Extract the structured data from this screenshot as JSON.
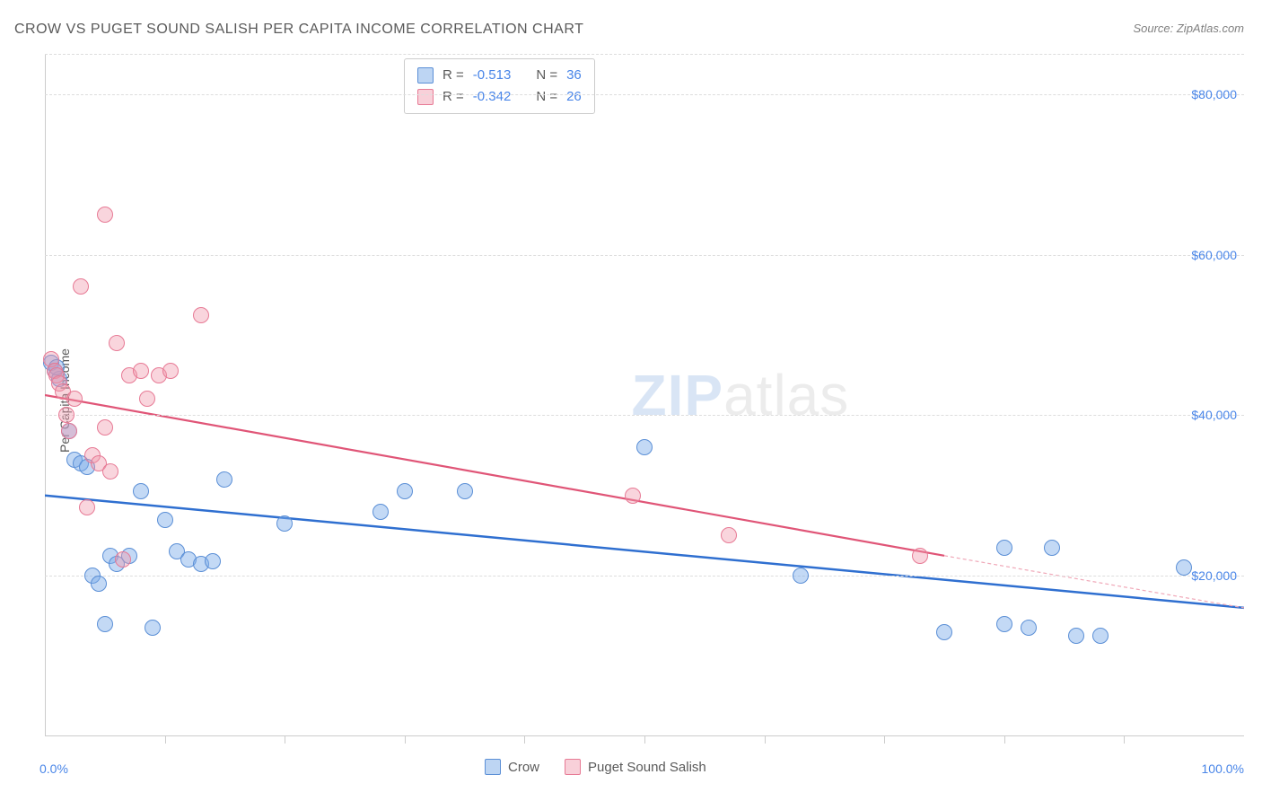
{
  "title": "CROW VS PUGET SOUND SALISH PER CAPITA INCOME CORRELATION CHART",
  "source": "Source: ZipAtlas.com",
  "ylabel": "Per Capita Income",
  "watermark_zip": "ZIP",
  "watermark_atlas": "atlas",
  "chart": {
    "type": "scatter",
    "background_color": "#ffffff",
    "grid_color": "#dddddd",
    "axis_color": "#cccccc",
    "text_color": "#5a5a5a",
    "value_color": "#4a86e8",
    "xlim": [
      0,
      100
    ],
    "ylim": [
      0,
      85000
    ],
    "yticks": [
      20000,
      40000,
      60000,
      80000
    ],
    "ytick_labels": [
      "$20,000",
      "$40,000",
      "$60,000",
      "$80,000"
    ],
    "xtick_positions": [
      10,
      20,
      30,
      40,
      50,
      60,
      70,
      80,
      90
    ],
    "xlabel_start": "0.0%",
    "xlabel_end": "100.0%",
    "point_radius": 9,
    "series": [
      {
        "name": "Crow",
        "color_fill": "rgba(123,171,232,0.45)",
        "color_stroke": "#5b8fd6",
        "R": "-0.513",
        "N": "36",
        "trend": {
          "x1": 0,
          "y1": 30000,
          "x2": 100,
          "y2": 16000,
          "color": "#2f6fd0",
          "width": 2.5,
          "dash": ""
        },
        "points": [
          {
            "x": 0.5,
            "y": 46500
          },
          {
            "x": 0.8,
            "y": 45500
          },
          {
            "x": 1.2,
            "y": 44500
          },
          {
            "x": 1.0,
            "y": 46000
          },
          {
            "x": 2.0,
            "y": 38000
          },
          {
            "x": 2.5,
            "y": 34500
          },
          {
            "x": 3.0,
            "y": 34000
          },
          {
            "x": 3.5,
            "y": 33500
          },
          {
            "x": 4.0,
            "y": 20000
          },
          {
            "x": 4.5,
            "y": 19000
          },
          {
            "x": 5.0,
            "y": 14000
          },
          {
            "x": 5.5,
            "y": 22500
          },
          {
            "x": 6.0,
            "y": 21500
          },
          {
            "x": 7.0,
            "y": 22500
          },
          {
            "x": 8.0,
            "y": 30500
          },
          {
            "x": 9.0,
            "y": 13500
          },
          {
            "x": 10.0,
            "y": 27000
          },
          {
            "x": 11.0,
            "y": 23000
          },
          {
            "x": 12.0,
            "y": 22000
          },
          {
            "x": 13.0,
            "y": 21500
          },
          {
            "x": 15.0,
            "y": 32000
          },
          {
            "x": 20.0,
            "y": 26500
          },
          {
            "x": 28.0,
            "y": 28000
          },
          {
            "x": 30.0,
            "y": 30500
          },
          {
            "x": 35.0,
            "y": 30500
          },
          {
            "x": 50.0,
            "y": 36000
          },
          {
            "x": 63.0,
            "y": 20000
          },
          {
            "x": 75.0,
            "y": 13000
          },
          {
            "x": 80.0,
            "y": 23500
          },
          {
            "x": 80.0,
            "y": 14000
          },
          {
            "x": 82.0,
            "y": 13500
          },
          {
            "x": 84.0,
            "y": 23500
          },
          {
            "x": 86.0,
            "y": 12500
          },
          {
            "x": 88.0,
            "y": 12500
          },
          {
            "x": 95.0,
            "y": 21000
          },
          {
            "x": 14.0,
            "y": 21800
          }
        ]
      },
      {
        "name": "Puget Sound Salish",
        "color_fill": "rgba(240,150,170,0.40)",
        "color_stroke": "#e77a95",
        "R": "-0.342",
        "N": "26",
        "trend": {
          "x1": 0,
          "y1": 42500,
          "x2": 75,
          "y2": 22500,
          "color": "#e05577",
          "width": 2.2,
          "dash": ""
        },
        "trend_ext": {
          "x1": 75,
          "y1": 22500,
          "x2": 100,
          "y2": 16000,
          "color": "#f0a8b8",
          "width": 1.2,
          "dash": "4 3"
        },
        "points": [
          {
            "x": 0.5,
            "y": 47000
          },
          {
            "x": 0.8,
            "y": 45500
          },
          {
            "x": 1.0,
            "y": 45000
          },
          {
            "x": 1.2,
            "y": 44000
          },
          {
            "x": 1.5,
            "y": 43000
          },
          {
            "x": 1.8,
            "y": 40000
          },
          {
            "x": 2.0,
            "y": 38000
          },
          {
            "x": 2.5,
            "y": 42000
          },
          {
            "x": 3.0,
            "y": 56000
          },
          {
            "x": 3.5,
            "y": 28500
          },
          {
            "x": 4.0,
            "y": 35000
          },
          {
            "x": 4.5,
            "y": 34000
          },
          {
            "x": 5.0,
            "y": 38500
          },
          {
            "x": 5.5,
            "y": 33000
          },
          {
            "x": 5.0,
            "y": 65000
          },
          {
            "x": 6.0,
            "y": 49000
          },
          {
            "x": 6.5,
            "y": 22000
          },
          {
            "x": 7.0,
            "y": 45000
          },
          {
            "x": 8.0,
            "y": 45500
          },
          {
            "x": 8.5,
            "y": 42000
          },
          {
            "x": 9.5,
            "y": 45000
          },
          {
            "x": 10.5,
            "y": 45500
          },
          {
            "x": 13.0,
            "y": 52500
          },
          {
            "x": 49.0,
            "y": 30000
          },
          {
            "x": 57.0,
            "y": 25000
          },
          {
            "x": 73.0,
            "y": 22500
          }
        ]
      }
    ],
    "legend_top": {
      "R_label": "R =",
      "N_label": "N ="
    },
    "legend_bottom": {
      "crow": "Crow",
      "salish": "Puget Sound Salish"
    }
  },
  "title_fontsize": 16,
  "label_fontsize": 14
}
